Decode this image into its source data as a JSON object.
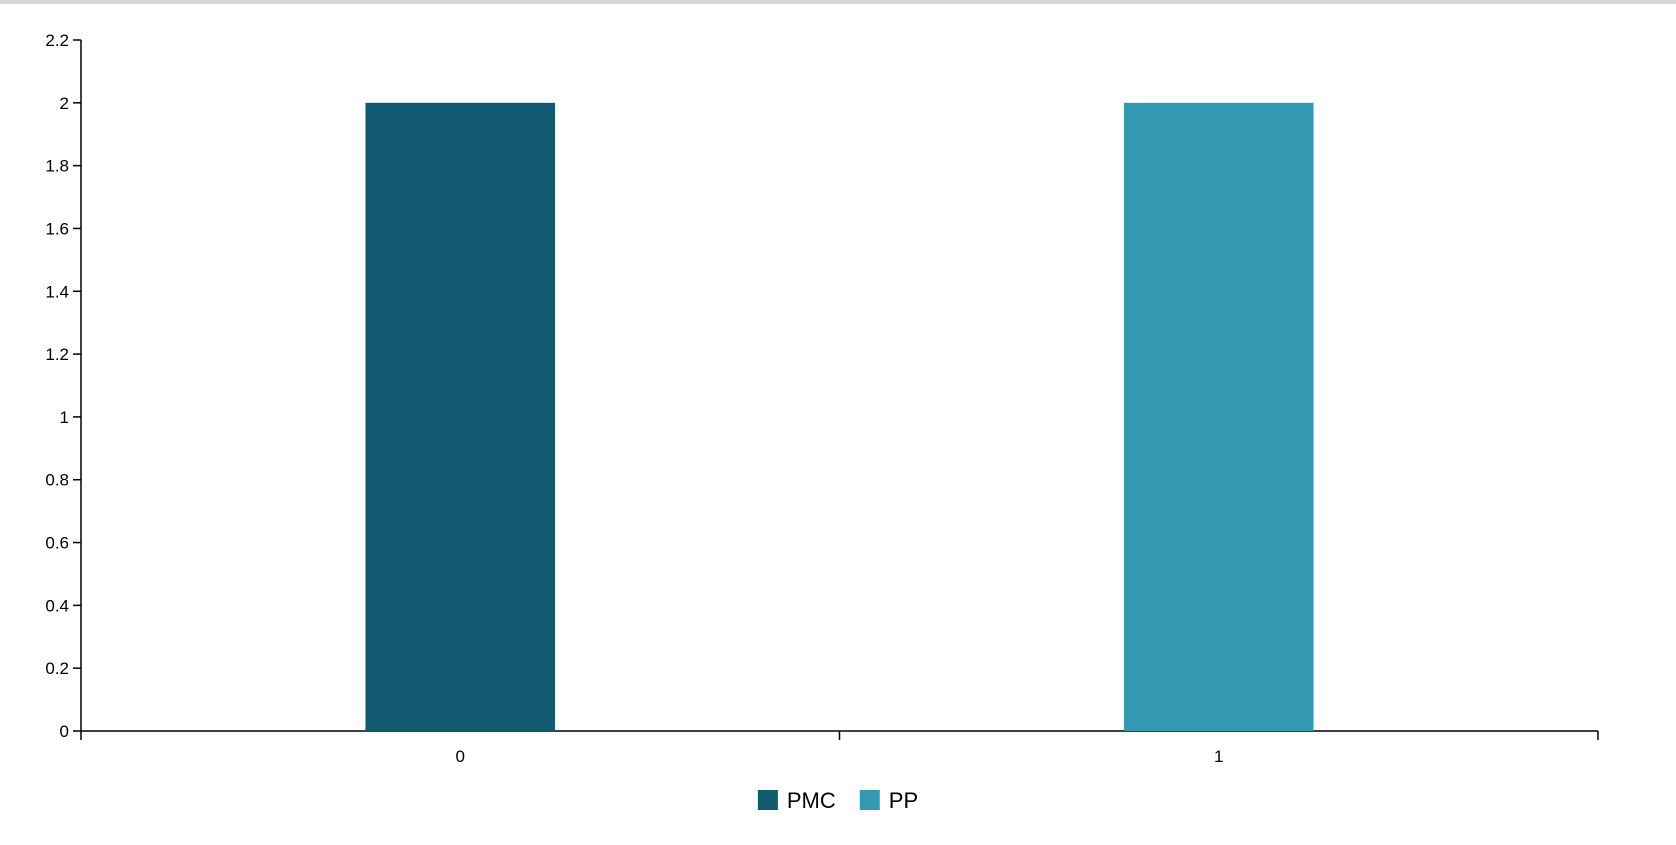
{
  "chart_data": {
    "type": "bar",
    "categories": [
      "0",
      "1"
    ],
    "series": [
      {
        "name": "PMC",
        "category": "0",
        "value": 2,
        "color": "#115a72"
      },
      {
        "name": "PP",
        "category": "1",
        "value": 2,
        "color": "#3499b2"
      }
    ],
    "ylim": [
      0,
      2.2
    ],
    "yticks": [
      "0",
      "0.2",
      "0.4",
      "0.6",
      "0.8",
      "1",
      "1.2",
      "1.4",
      "1.6",
      "1.8",
      "2",
      "2.2"
    ],
    "grid": false,
    "legend": "bottom-center",
    "title": "",
    "xlabel": "",
    "ylabel": ""
  }
}
